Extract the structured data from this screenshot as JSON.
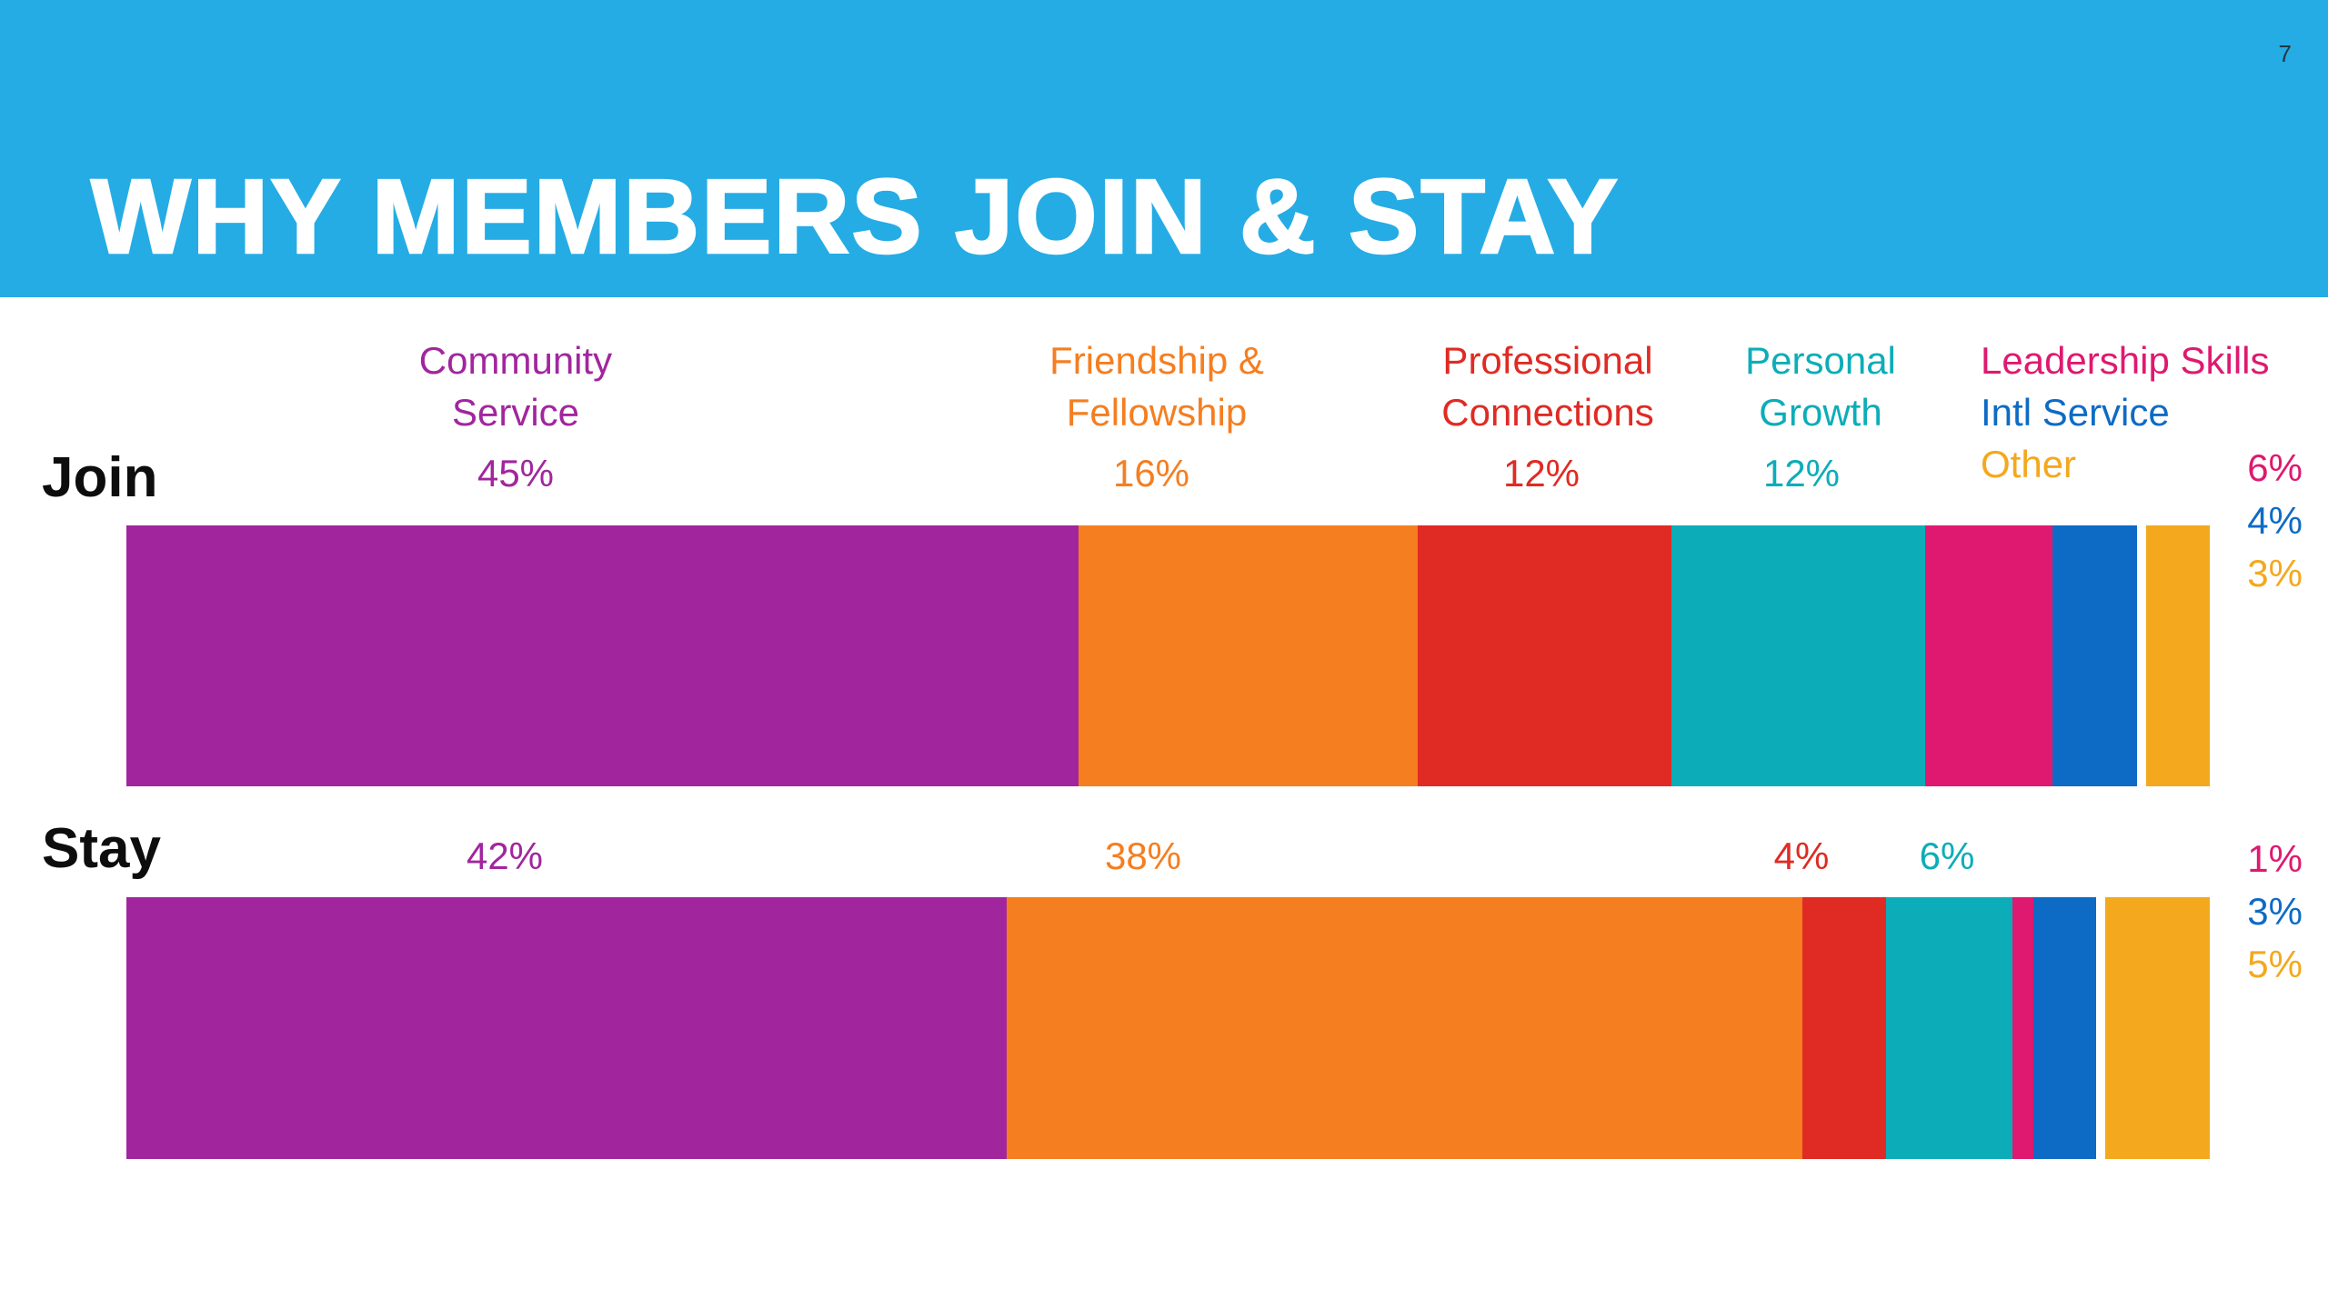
{
  "page": {
    "number": "7",
    "background": "#ffffff",
    "number_color": "#233744"
  },
  "header": {
    "title": "WHY MEMBERS JOIN & STAY",
    "background": "#25ace4",
    "text_color": "#ffffff"
  },
  "chart_data": {
    "type": "bar",
    "variant": "horizontal-stacked-percentage",
    "title": "WHY MEMBERS JOIN & STAY",
    "unit": "%",
    "categories": [
      "Community Service",
      "Friendship & Fellowship",
      "Professional Connections",
      "Personal Growth",
      "Leadership Skills",
      "Intl Service",
      "Other"
    ],
    "category_lines": [
      [
        "Community",
        "Service"
      ],
      [
        "Friendship &",
        "Fellowship"
      ],
      [
        "Professional",
        "Connections"
      ],
      [
        "Personal",
        "Growth"
      ],
      [
        "Leadership Skills"
      ],
      [
        "Intl Service"
      ],
      [
        "Other"
      ]
    ],
    "colors": [
      "#a1269e",
      "#f57e20",
      "#df2b24",
      "#0cadb8",
      "#df1970",
      "#0e6bc5",
      "#f4a81d"
    ],
    "series": [
      {
        "name": "Join",
        "values": [
          45,
          16,
          12,
          12,
          6,
          4,
          3
        ],
        "labels": [
          "45%",
          "16%",
          "12%",
          "12%",
          "6%",
          "4%",
          "3%"
        ]
      },
      {
        "name": "Stay",
        "values": [
          42,
          38,
          4,
          6,
          1,
          3,
          5
        ],
        "labels": [
          "42%",
          "38%",
          "4%",
          "6%",
          "1%",
          "3%",
          "5%"
        ]
      }
    ],
    "legend_position": "top",
    "xlim": [
      0,
      100
    ],
    "grid": false,
    "axis": "none"
  }
}
